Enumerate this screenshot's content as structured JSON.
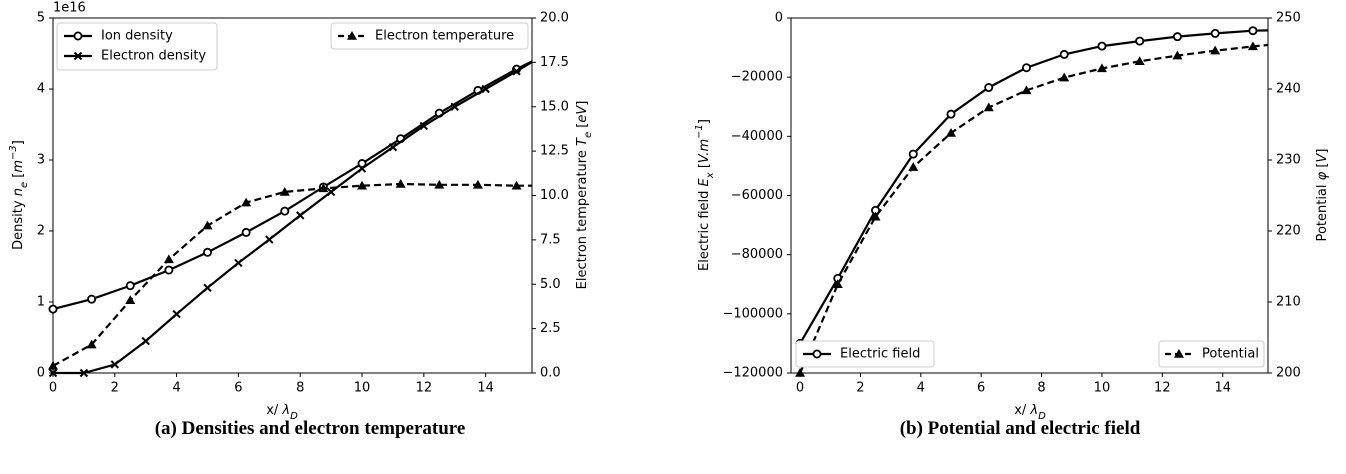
{
  "captions": {
    "a": "(a) Densities and electron temperature",
    "b": "(b) Potential and electric field"
  },
  "colors": {
    "line": "#000000",
    "background": "#ffffff"
  },
  "chart_data": [
    {
      "type": "line",
      "xlabel": "x/ λ_D",
      "ylabel_left": "Density n_e [m^-3]",
      "ylabel_right": "Electron temperature T_e [eV]",
      "xlim": [
        0,
        15.5
      ],
      "ylim_left": [
        0,
        5e+16
      ],
      "ylim_right": [
        0,
        20
      ],
      "left_offset_label": "1e16",
      "x_ticks": [
        "0",
        "2",
        "4",
        "6",
        "8",
        "10",
        "12",
        "14"
      ],
      "y_left_ticks": [
        "0",
        "1",
        "2",
        "3",
        "4",
        "5"
      ],
      "y_right_ticks": [
        "0.0",
        "2.5",
        "5.0",
        "7.5",
        "10.0",
        "12.5",
        "15.0",
        "17.5",
        "20.0"
      ],
      "grid": false,
      "legends": [
        {
          "placement": "upper-left",
          "entries": [
            "Ion density",
            "Electron density"
          ]
        },
        {
          "placement": "upper-right",
          "entries": [
            "Electron temperature"
          ]
        }
      ],
      "series": [
        {
          "name": "Ion density",
          "axis": "left",
          "style": "solid",
          "marker": "circle",
          "x": [
            0,
            1.25,
            2.5,
            3.75,
            5,
            6.25,
            7.5,
            8.75,
            10,
            11.25,
            12.5,
            13.75,
            15,
            15.5
          ],
          "y": [
            9000000000000000.0,
            1.04e+16,
            1.23e+16,
            1.45e+16,
            1.7e+16,
            1.98e+16,
            2.28e+16,
            2.62e+16,
            2.95e+16,
            3.3e+16,
            3.66e+16,
            3.98e+16,
            4.28e+16,
            4.39e+16
          ],
          "marker_count": 13
        },
        {
          "name": "Electron density",
          "axis": "left",
          "style": "solid",
          "marker": "x",
          "x": [
            0,
            1,
            2,
            3,
            4,
            5,
            6,
            7,
            8,
            9,
            10,
            11,
            12,
            13,
            14,
            15,
            15.5
          ],
          "y": [
            0,
            0,
            1200000000000000.0,
            4500000000000000.0,
            8300000000000000.0,
            1.2e+16,
            1.55e+16,
            1.88e+16,
            2.22e+16,
            2.55e+16,
            2.88e+16,
            3.18e+16,
            3.48e+16,
            3.75e+16,
            4e+16,
            4.25e+16,
            4.38e+16
          ],
          "marker_count": 16
        },
        {
          "name": "Electron temperature",
          "axis": "right",
          "style": "dashed",
          "marker": "triangle",
          "x": [
            0,
            1.25,
            2.5,
            3.75,
            5,
            6.25,
            7.5,
            8.75,
            10,
            11.25,
            12.5,
            13.75,
            15,
            15.5
          ],
          "y": [
            0.4,
            1.6,
            4.1,
            6.4,
            8.3,
            9.6,
            10.2,
            10.4,
            10.55,
            10.65,
            10.6,
            10.6,
            10.55,
            10.55
          ],
          "marker_count": 13
        }
      ]
    },
    {
      "type": "line",
      "xlabel": "x/ λ_D",
      "ylabel_left": "Electric field E_x [V.m^-1]",
      "ylabel_right": "Potential φ [V]",
      "xlim": [
        -0.3,
        15.5
      ],
      "ylim_left": [
        -120000,
        0
      ],
      "ylim_right": [
        200,
        250
      ],
      "x_ticks": [
        "0",
        "2",
        "4",
        "6",
        "8",
        "10",
        "12",
        "14"
      ],
      "y_left_ticks": [
        "−120000",
        "−100000",
        "−80000",
        "−60000",
        "−40000",
        "−20000",
        "0"
      ],
      "y_right_ticks": [
        "200",
        "210",
        "220",
        "230",
        "240",
        "250"
      ],
      "grid": false,
      "legends": [
        {
          "placement": "lower-left",
          "entries": [
            "Electric field"
          ]
        },
        {
          "placement": "lower-right",
          "entries": [
            "Potential"
          ]
        }
      ],
      "series": [
        {
          "name": "Electric field",
          "axis": "left",
          "style": "solid",
          "marker": "circle",
          "x": [
            0,
            1.25,
            2.5,
            3.75,
            5,
            6.25,
            7.5,
            8.75,
            10,
            11.25,
            12.5,
            13.75,
            15,
            15.5
          ],
          "y": [
            -110000,
            -88000,
            -65000,
            -46000,
            -32500,
            -23500,
            -16800,
            -12300,
            -9500,
            -7800,
            -6300,
            -5200,
            -4300,
            -4200
          ],
          "marker_count": 13
        },
        {
          "name": "Potential",
          "axis": "right",
          "style": "dashed",
          "marker": "triangle",
          "x": [
            0,
            1.25,
            2.5,
            3.75,
            5,
            6.25,
            7.5,
            8.75,
            10,
            11.25,
            12.5,
            13.75,
            15,
            15.5
          ],
          "y": [
            200,
            212.5,
            222,
            229,
            233.8,
            237.4,
            239.8,
            241.6,
            242.9,
            243.9,
            244.7,
            245.4,
            246.0,
            246.2
          ],
          "marker_count": 13
        }
      ]
    }
  ]
}
